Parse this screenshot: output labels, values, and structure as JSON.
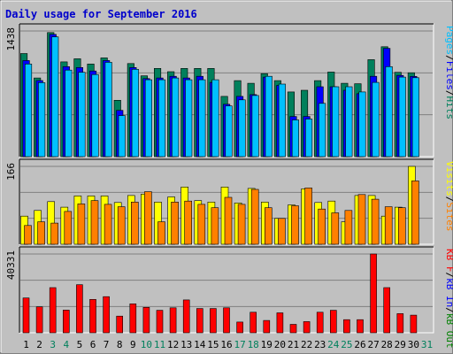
{
  "title": "Daily usage for September 2016",
  "colors": {
    "title": "#0000cc",
    "hits": "#00805c",
    "files": "#0000ff",
    "pages": "#00c0ff",
    "visits": "#ffff00",
    "sites": "#ff8000",
    "kb_in": "#0000ff",
    "kb_out": "#008000",
    "kbytes": "#ff0000",
    "weekend_label": "#00805c",
    "weekday_label": "#000000",
    "panel_bg": "#c0c0c0",
    "grid": "#808080"
  },
  "chart_data": [
    {
      "type": "bar",
      "panel": "top",
      "ymax_label": "1438",
      "ymax": 1438,
      "legend": [
        "Pages",
        "/",
        "Files",
        "/",
        "Hits"
      ],
      "categories": [
        "1",
        "2",
        "3",
        "4",
        "5",
        "6",
        "7",
        "8",
        "9",
        "10",
        "11",
        "12",
        "13",
        "14",
        "15",
        "16",
        "17",
        "18",
        "19",
        "20",
        "21",
        "22",
        "23",
        "24",
        "25",
        "26",
        "27",
        "28",
        "29",
        "30",
        "31"
      ],
      "series": [
        {
          "name": "Hits",
          "values": [
            1180,
            900,
            1420,
            1085,
            1120,
            1060,
            1130,
            645,
            1065,
            925,
            1010,
            972,
            1010,
            1010,
            1010,
            690,
            870,
            840,
            950,
            870,
            740,
            760,
            870,
            968,
            840,
            834,
            1110,
            1258,
            965,
            960,
            null
          ]
        },
        {
          "name": "Files",
          "values": [
            1100,
            871,
            1400,
            1030,
            1020,
            980,
            1100,
            530,
            1020,
            893,
            900,
            920,
            900,
            920,
            850,
            600,
            690,
            710,
            910,
            815,
            460,
            460,
            800,
            800,
            760,
            720,
            920,
            1240,
            930,
            918,
            null
          ]
        },
        {
          "name": "Pages",
          "values": [
            1060,
            847,
            1370,
            990,
            965,
            940,
            1080,
            470,
            1000,
            880,
            880,
            900,
            880,
            880,
            880,
            580,
            650,
            700,
            920,
            830,
            420,
            430,
            610,
            800,
            800,
            740,
            850,
            1030,
            910,
            903,
            null
          ]
        }
      ]
    },
    {
      "type": "bar",
      "panel": "middle",
      "ymax_label": "166",
      "ymax": 166,
      "legend": [
        "Visits",
        "/",
        "Sites"
      ],
      "categories": [
        "1",
        "2",
        "3",
        "4",
        "5",
        "6",
        "7",
        "8",
        "9",
        "10",
        "11",
        "12",
        "13",
        "14",
        "15",
        "16",
        "17",
        "18",
        "19",
        "20",
        "21",
        "22",
        "23",
        "24",
        "25",
        "26",
        "27",
        "28",
        "29",
        "30",
        "31"
      ],
      "series": [
        {
          "name": "Visits",
          "values": [
            60,
            72,
            91,
            79,
            103,
            103,
            103,
            89,
            104,
            107,
            90,
            101,
            122,
            93,
            90,
            122,
            88,
            119,
            90,
            55,
            84,
            118,
            89,
            92,
            48,
            104,
            104,
            60,
            79,
            166,
            null
          ]
        },
        {
          "name": "Sites",
          "values": [
            40,
            48,
            45,
            70,
            86,
            93,
            85,
            80,
            90,
            112,
            48,
            90,
            92,
            85,
            78,
            100,
            85,
            117,
            78,
            55,
            82,
            120,
            75,
            67,
            72,
            106,
            96,
            80,
            78,
            135,
            null
          ]
        }
      ]
    },
    {
      "type": "bar",
      "panel": "bottom",
      "ymax_label": "40331",
      "ymax": 40331,
      "legend": [
        "KB",
        "F",
        "/",
        "kB",
        "In",
        "/",
        "kB",
        "Out"
      ],
      "categories": [
        "1",
        "2",
        "3",
        "4",
        "5",
        "6",
        "7",
        "8",
        "9",
        "10",
        "11",
        "12",
        "13",
        "14",
        "15",
        "16",
        "17",
        "18",
        "19",
        "20",
        "21",
        "22",
        "23",
        "24",
        "25",
        "26",
        "27",
        "28",
        "29",
        "30",
        "31"
      ],
      "series": [
        {
          "name": "KBytes",
          "values": [
            17800,
            13300,
            23100,
            11600,
            24600,
            17100,
            18500,
            8500,
            14800,
            13000,
            11500,
            12800,
            16800,
            12400,
            12400,
            12800,
            5500,
            10500,
            6300,
            10200,
            4300,
            5700,
            10500,
            11500,
            6700,
            6700,
            40331,
            23100,
            9800,
            9000,
            null
          ]
        }
      ]
    }
  ],
  "x_labels": [
    {
      "t": "1",
      "weekend": false
    },
    {
      "t": "2",
      "weekend": false
    },
    {
      "t": "3",
      "weekend": true
    },
    {
      "t": "4",
      "weekend": true
    },
    {
      "t": "5",
      "weekend": false
    },
    {
      "t": "6",
      "weekend": false
    },
    {
      "t": "7",
      "weekend": false
    },
    {
      "t": "8",
      "weekend": false
    },
    {
      "t": "9",
      "weekend": false
    },
    {
      "t": "10",
      "weekend": true
    },
    {
      "t": "11",
      "weekend": true
    },
    {
      "t": "12",
      "weekend": false
    },
    {
      "t": "13",
      "weekend": false
    },
    {
      "t": "14",
      "weekend": false
    },
    {
      "t": "15",
      "weekend": false
    },
    {
      "t": "16",
      "weekend": false
    },
    {
      "t": "17",
      "weekend": true
    },
    {
      "t": "18",
      "weekend": true
    },
    {
      "t": "19",
      "weekend": false
    },
    {
      "t": "20",
      "weekend": false
    },
    {
      "t": "21",
      "weekend": false
    },
    {
      "t": "22",
      "weekend": false
    },
    {
      "t": "23",
      "weekend": false
    },
    {
      "t": "24",
      "weekend": true
    },
    {
      "t": "25",
      "weekend": true
    },
    {
      "t": "26",
      "weekend": false
    },
    {
      "t": "27",
      "weekend": false
    },
    {
      "t": "28",
      "weekend": false
    },
    {
      "t": "29",
      "weekend": false
    },
    {
      "t": "30",
      "weekend": false
    },
    {
      "t": "31",
      "weekend": true
    }
  ]
}
